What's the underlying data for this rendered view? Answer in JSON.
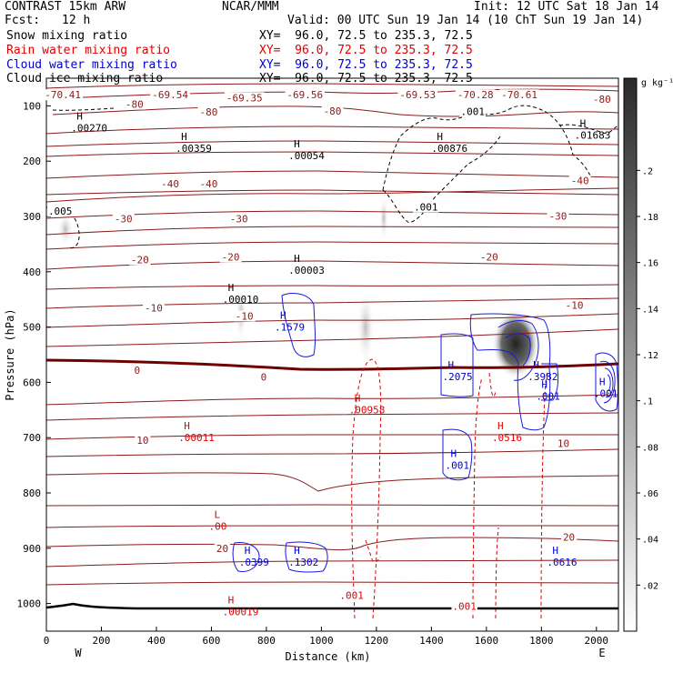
{
  "header": {
    "model": "CONTRAST 15km ARW",
    "center": "NCAR/MMM",
    "init": "Init: 12 UTC Sat 18 Jan 14",
    "fcst_label": "Fcst:",
    "fcst_value": "12 h",
    "valid": "Valid: 00 UTC Sun 19 Jan 14 (10 ChT Sun 19 Jan 14)",
    "fields": [
      {
        "name": "Snow mixing ratio",
        "xy": "XY=  96.0, 72.5 to 235.3, 72.5",
        "color": "#000000"
      },
      {
        "name": "Rain water mixing ratio",
        "xy": "XY=  96.0, 72.5 to 235.3, 72.5",
        "color": "#e00000"
      },
      {
        "name": "Cloud water mixing ratio",
        "xy": "XY=  96.0, 72.5 to 235.3, 72.5",
        "color": "#0000cc"
      },
      {
        "name": "Cloud ice mixing ratio",
        "xy": "XY=  96.0, 72.5 to 235.3, 72.5",
        "color": "#000000"
      }
    ]
  },
  "chart_data": {
    "type": "cross-section",
    "xlabel": "Distance (km)",
    "ylabel": "Pressure (hPa)",
    "xlim": [
      0,
      2080
    ],
    "ylim": [
      1050,
      50
    ],
    "xticks": [
      0,
      200,
      400,
      600,
      800,
      1000,
      1200,
      1400,
      1600,
      1800,
      2000
    ],
    "yticks": [
      100,
      200,
      300,
      400,
      500,
      600,
      700,
      800,
      900,
      1000
    ],
    "x_end_labels": {
      "left": "W",
      "right": "E"
    },
    "colorbar": {
      "unit": "g kg⁻¹",
      "ticks": [
        ".02",
        ".04",
        ".06",
        ".08",
        ".1",
        ".12",
        ".14",
        ".16",
        ".18",
        ".2"
      ],
      "tick_values": [
        0.02,
        0.04,
        0.06,
        0.08,
        0.1,
        0.12,
        0.14,
        0.16,
        0.18,
        0.2
      ],
      "range": [
        0,
        0.24
      ]
    },
    "temperature_labels": [
      {
        "text": "-70.41",
        "x": 60,
        "p": 80
      },
      {
        "text": "-69.54",
        "x": 450,
        "p": 80
      },
      {
        "text": "-69.35",
        "x": 720,
        "p": 85
      },
      {
        "text": "-69.56",
        "x": 940,
        "p": 80
      },
      {
        "text": "-69.53",
        "x": 1350,
        "p": 80
      },
      {
        "text": "-70.28",
        "x": 1560,
        "p": 80
      },
      {
        "text": "-70.61",
        "x": 1720,
        "p": 80
      },
      {
        "text": "-80",
        "x": 320,
        "p": 97
      },
      {
        "text": "-80",
        "x": 590,
        "p": 111
      },
      {
        "text": "-80",
        "x": 1040,
        "p": 109
      },
      {
        "text": "-80",
        "x": 2020,
        "p": 88
      },
      {
        "text": "-40",
        "x": 450,
        "p": 241
      },
      {
        "text": "-40",
        "x": 590,
        "p": 241
      },
      {
        "text": "-40",
        "x": 1940,
        "p": 235
      },
      {
        "text": "-30",
        "x": 280,
        "p": 304
      },
      {
        "text": "-30",
        "x": 700,
        "p": 304
      },
      {
        "text": "-30",
        "x": 1860,
        "p": 299
      },
      {
        "text": "-20",
        "x": 340,
        "p": 378
      },
      {
        "text": "-20",
        "x": 670,
        "p": 373
      },
      {
        "text": "-20",
        "x": 1610,
        "p": 373
      },
      {
        "text": "-10",
        "x": 390,
        "p": 465
      },
      {
        "text": "-10",
        "x": 720,
        "p": 480
      },
      {
        "text": "-10",
        "x": 1920,
        "p": 460
      },
      {
        "text": "0",
        "x": 330,
        "p": 578
      },
      {
        "text": "0",
        "x": 790,
        "p": 590
      },
      {
        "text": "10",
        "x": 350,
        "p": 705
      },
      {
        "text": "10",
        "x": 1880,
        "p": 710
      },
      {
        "text": "20",
        "x": 640,
        "p": 900
      },
      {
        "text": "20",
        "x": 1900,
        "p": 880
      }
    ],
    "extrema": [
      {
        "type": "H",
        "value": ".00270",
        "x": 110,
        "p": 130,
        "color": "#000000"
      },
      {
        "type": "H",
        "value": ".00359",
        "x": 490,
        "p": 167,
        "color": "#000000"
      },
      {
        "type": "H",
        "value": ".00054",
        "x": 900,
        "p": 180,
        "color": "#000000"
      },
      {
        "type": "H",
        "value": ".00876",
        "x": 1420,
        "p": 167,
        "color": "#000000"
      },
      {
        "type": "H",
        "value": ".01683",
        "x": 1940,
        "p": 143,
        "color": "#000000"
      },
      {
        "type": "H",
        "value": ".00003",
        "x": 900,
        "p": 387,
        "color": "#000000"
      },
      {
        "type": "H",
        "value": ".00010",
        "x": 660,
        "p": 440,
        "color": "#000000"
      },
      {
        "type": "H",
        "value": ".00011",
        "x": 500,
        "p": 690,
        "color": "#e00000"
      },
      {
        "type": "H",
        "value": ".00958",
        "x": 1120,
        "p": 640,
        "color": "#e00000"
      },
      {
        "type": "H",
        "value": ".0516",
        "x": 1640,
        "p": 690,
        "color": "#e00000"
      },
      {
        "type": "L",
        "value": ".00",
        "x": 610,
        "p": 850,
        "color": "#e00000"
      },
      {
        "type": "H",
        "value": ".00019",
        "x": 660,
        "p": 1005,
        "color": "#e00000"
      },
      {
        "type": "H",
        "value": ".1579",
        "x": 850,
        "p": 490,
        "color": "#0000cc"
      },
      {
        "type": "H",
        "value": ".2075",
        "x": 1460,
        "p": 580,
        "color": "#0000cc"
      },
      {
        "type": "H",
        "value": ".3982",
        "x": 1770,
        "p": 580,
        "color": "#0000cc"
      },
      {
        "type": "H",
        "value": ".001",
        "x": 1800,
        "p": 615,
        "color": "#0000cc"
      },
      {
        "type": "H",
        "value": ".001",
        "x": 2010,
        "p": 610,
        "color": "#0000cc"
      },
      {
        "type": "H",
        "value": ".001",
        "x": 1470,
        "p": 740,
        "color": "#0000cc"
      },
      {
        "type": "H",
        "value": ".0399",
        "x": 720,
        "p": 915,
        "color": "#0000cc"
      },
      {
        "type": "H",
        "value": ".1302",
        "x": 900,
        "p": 915,
        "color": "#0000cc"
      },
      {
        "type": "H",
        "value": ".0616",
        "x": 1840,
        "p": 915,
        "color": "#0000cc"
      }
    ],
    "contour_labels": [
      {
        "text": ".001",
        "x": 1550,
        "p": 110,
        "color": "#000000"
      },
      {
        "text": ".001",
        "x": 1380,
        "p": 283,
        "color": "#000000"
      },
      {
        "text": ".005",
        "x": 0,
        "p": 290,
        "color": "#000000"
      },
      {
        "text": ".001",
        "x": 1110,
        "p": 985,
        "color": "#e00000"
      },
      {
        "text": ".001",
        "x": 1520,
        "p": 1005,
        "color": "#e00000"
      }
    ]
  }
}
